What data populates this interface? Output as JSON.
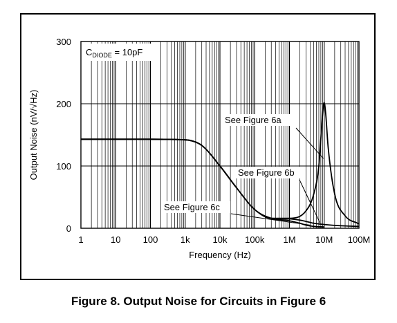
{
  "caption": "Figure 8. Output Noise for Circuits in Figure 6",
  "chart_data": {
    "type": "line",
    "title": "",
    "xlabel": "Frequency (Hz)",
    "ylabel": "Output Noise (nV/√Hz)",
    "xscale": "log",
    "xlim": [
      1,
      100000000
    ],
    "ylim": [
      0,
      300
    ],
    "grid": true,
    "x_tick_labels": [
      "1",
      "10",
      "100",
      "1k",
      "10k",
      "100k",
      "1M",
      "10M",
      "100M"
    ],
    "y_tick_labels": [
      "0",
      "100",
      "200",
      "300"
    ],
    "annotation": {
      "symbol": "C",
      "subscript": "DIODE",
      "text": " = 10pF"
    },
    "series": [
      {
        "name": "See Figure 6a",
        "x": [
          1,
          10,
          100,
          1000,
          3000,
          10000,
          30000,
          100000,
          300000,
          1000000,
          3000000,
          5000000,
          7000000,
          8500000,
          9500000,
          10000000,
          11000000,
          13000000,
          20000000,
          40000000,
          100000000
        ],
        "y": [
          143,
          143,
          143,
          142,
          133,
          100,
          65,
          30,
          16,
          16,
          28,
          55,
          100,
          165,
          198,
          202,
          185,
          130,
          55,
          20,
          7
        ]
      },
      {
        "name": "See Figure 6b",
        "x": [
          1,
          10,
          100,
          1000,
          3000,
          10000,
          30000,
          100000,
          300000,
          1000000,
          2000000,
          3000000,
          5000000,
          10000000,
          30000000,
          100000000
        ],
        "y": [
          143,
          143,
          143,
          142,
          133,
          100,
          65,
          30,
          16,
          15,
          13,
          11,
          8,
          6,
          4,
          3
        ]
      },
      {
        "name": "See Figure 6c",
        "x": [
          1,
          10,
          100,
          1000,
          3000,
          10000,
          30000,
          100000,
          300000,
          1000000,
          2000000,
          3000000,
          5000000,
          10000000
        ],
        "y": [
          143,
          143,
          143,
          142,
          133,
          100,
          65,
          30,
          16,
          12,
          8,
          5,
          3,
          2
        ]
      }
    ]
  }
}
